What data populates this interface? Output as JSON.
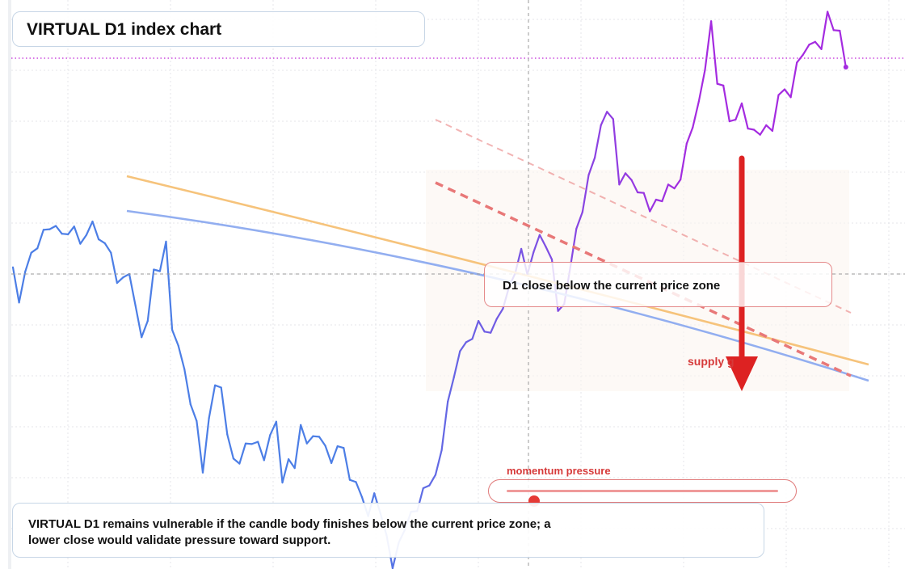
{
  "title": "VIRTUAL D1 index chart",
  "callout": "D1 close below the current price zone",
  "supply_label": "supply g",
  "momentum": {
    "label": "momentum pressure",
    "level": 0.1
  },
  "summary": "VIRTUAL D1 remains vulnerable if the candle body finishes below the current price zone; a lower close would validate pressure toward support.",
  "colors": {
    "price_start": "#4c7ee6",
    "price_end": "#a42be0",
    "orange_ma": "#f6c37b",
    "blue_ma": "#92aef0",
    "trend_dashed": "#e87878",
    "arrow": "#dd2222",
    "accent_text": "#d63a3a"
  },
  "chart_data": {
    "type": "line",
    "title": "VIRTUAL D1 index chart",
    "xlabel": "",
    "ylabel": "",
    "grid": true,
    "ylim": [
      0,
      100
    ],
    "xlim": [
      0,
      138
    ],
    "series": [
      {
        "values": [
          53.8,
          47.5,
          53.0,
          56.4,
          57.2,
          60.5,
          60.6,
          61.2,
          59.8,
          59.7,
          61.1,
          58.0,
          59.6,
          62.0,
          58.8,
          58.1,
          56.4,
          51.0,
          52.0,
          52.6,
          47.0,
          41.3,
          44.2,
          53.4,
          53.1,
          58.4,
          42.6,
          39.8,
          35.6,
          29.3,
          26.3,
          17.1,
          26.8,
          32.7,
          32.3,
          23.9,
          19.6,
          18.7,
          22.3,
          22.2,
          22.6,
          19.3,
          23.8,
          26.2,
          15.3,
          19.5,
          17.9,
          25.6,
          22.3,
          23.6,
          23.5,
          21.9,
          18.8,
          21.8,
          21.5,
          15.8,
          15.4,
          12.7,
          9.3,
          13.4,
          9.8,
          5.9,
          0.0,
          4.6,
          6.9,
          10.1,
          10.2,
          14.3,
          14.8,
          16.7,
          21.1,
          29.8,
          34.1,
          38.8,
          40.4,
          41.0,
          44.2,
          42.3,
          42.1,
          44.6,
          46.4,
          50.3,
          52.7,
          57.1,
          52.5,
          56.5,
          59.6,
          57.5,
          55.2,
          46.0,
          47.2,
          53.8,
          60.7,
          63.7,
          70.3,
          73.4,
          79.2,
          81.6,
          80.3,
          68.6,
          70.6,
          69.4,
          67.2,
          67.1,
          63.8,
          65.9,
          65.6,
          68.6,
          67.9,
          69.5,
          75.9,
          78.8,
          83.5,
          89.1,
          97.8,
          86.6,
          86.3,
          79.9,
          80.2,
          83.1,
          78.6,
          78.4,
          77.5,
          79.2,
          78.2,
          84.6,
          85.6,
          84.2,
          90.4,
          91.8,
          93.6,
          94.1,
          92.8,
          99.5,
          96.2,
          96.1,
          89.6
        ],
        "line_coverage": "partial: segments hidden behind the overlaid text panels are not shown"
      }
    ],
    "overlays": [
      {
        "kind": "moving-average",
        "color": "orange",
        "style": "solid"
      },
      {
        "kind": "moving-average",
        "color": "blue",
        "style": "solid"
      },
      {
        "kind": "trendline",
        "style": "dashed",
        "color": "red"
      },
      {
        "kind": "trendline",
        "style": "dashed",
        "color": "light-red"
      },
      {
        "kind": "arrow",
        "direction": "down",
        "color": "red"
      }
    ]
  }
}
